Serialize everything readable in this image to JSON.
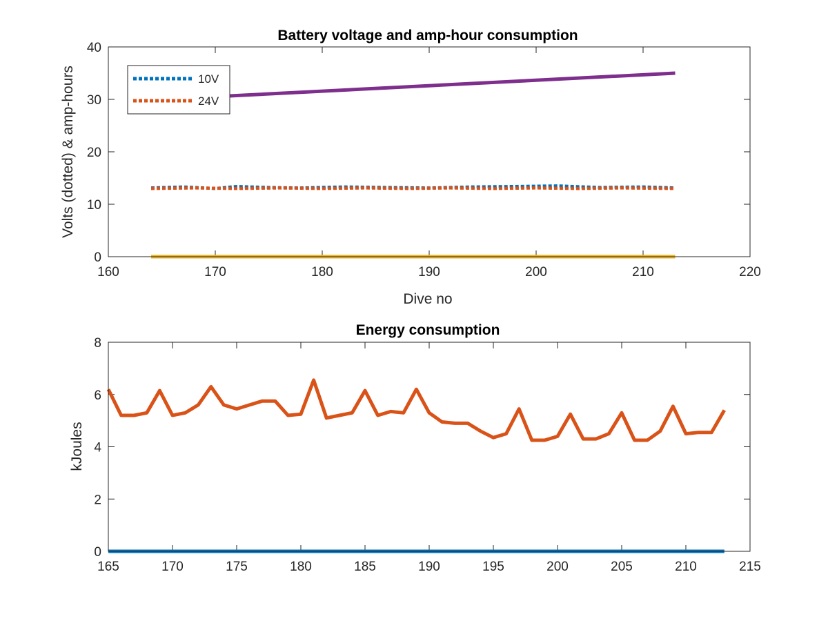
{
  "chart_data": [
    {
      "type": "line",
      "title": "Battery voltage and amp-hour consumption",
      "xlabel": "Dive no",
      "ylabel": "Volts (dotted) & amp-hours",
      "xlim": [
        160,
        220
      ],
      "ylim": [
        0,
        40
      ],
      "xticks": [
        160,
        170,
        180,
        190,
        200,
        210,
        220
      ],
      "yticks": [
        0,
        10,
        20,
        30,
        40
      ],
      "grid": false,
      "legend_position": "top-left",
      "series": [
        {
          "name": "10V",
          "style": "dotted",
          "color": "#0072BD",
          "x": [
            164,
            167,
            170,
            172,
            175,
            178,
            182,
            186,
            190,
            194,
            198,
            202,
            206,
            210,
            213
          ],
          "y": [
            13.1,
            13.3,
            13.0,
            13.4,
            13.2,
            13.1,
            13.3,
            13.2,
            13.1,
            13.3,
            13.4,
            13.5,
            13.2,
            13.3,
            13.1
          ]
        },
        {
          "name": "24V",
          "style": "dotted",
          "color": "#D95319",
          "x": [
            164,
            168,
            172,
            176,
            180,
            184,
            188,
            192,
            196,
            200,
            204,
            208,
            213
          ],
          "y": [
            13.0,
            13.1,
            13.0,
            13.1,
            13.0,
            13.1,
            13.0,
            13.1,
            13.0,
            13.1,
            13.0,
            13.1,
            13.0
          ]
        },
        {
          "style": "solid",
          "color": "#EDB120",
          "x": [
            164,
            213
          ],
          "y": [
            0,
            0
          ]
        },
        {
          "style": "solid",
          "color": "#7E2F8E",
          "x": [
            165,
            213
          ],
          "y": [
            30.0,
            35.0
          ]
        }
      ]
    },
    {
      "type": "line",
      "title": "Energy consumption",
      "xlabel": "",
      "ylabel": "kJoules",
      "xlim": [
        165,
        215
      ],
      "ylim": [
        0,
        8
      ],
      "xticks": [
        165,
        170,
        175,
        180,
        185,
        190,
        195,
        200,
        205,
        210,
        215
      ],
      "yticks": [
        0,
        2,
        4,
        6,
        8
      ],
      "grid": false,
      "series": [
        {
          "style": "solid",
          "color": "#0072BD",
          "x": [
            165,
            213
          ],
          "y": [
            0,
            0
          ]
        },
        {
          "style": "solid",
          "color": "#D95319",
          "x": [
            165,
            166,
            167,
            168,
            169,
            170,
            171,
            172,
            173,
            174,
            175,
            176,
            177,
            178,
            179,
            180,
            181,
            182,
            183,
            184,
            185,
            186,
            187,
            188,
            189,
            190,
            191,
            192,
            193,
            194,
            195,
            196,
            197,
            198,
            199,
            200,
            201,
            202,
            203,
            204,
            205,
            206,
            207,
            208,
            209,
            210,
            211,
            212,
            213
          ],
          "y": [
            6.2,
            5.2,
            5.2,
            5.3,
            6.15,
            5.2,
            5.3,
            5.6,
            6.3,
            5.6,
            5.45,
            5.6,
            5.75,
            5.75,
            5.2,
            5.25,
            6.55,
            5.1,
            5.2,
            5.3,
            6.15,
            5.2,
            5.35,
            5.3,
            6.2,
            5.3,
            4.95,
            4.9,
            4.9,
            4.6,
            4.35,
            4.5,
            5.45,
            4.25,
            4.25,
            4.4,
            5.25,
            4.3,
            4.3,
            4.5,
            5.3,
            4.25,
            4.25,
            4.6,
            5.55,
            4.5,
            4.55,
            4.55,
            5.4
          ]
        }
      ]
    }
  ]
}
